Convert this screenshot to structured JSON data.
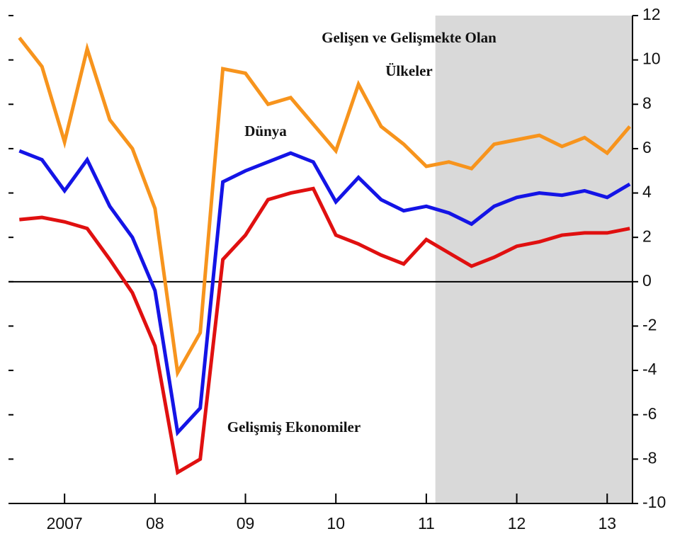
{
  "chart_data": {
    "type": "line",
    "x": [
      2007,
      2007.25,
      2007.5,
      2007.75,
      2008,
      2008.25,
      2008.5,
      2008.75,
      2009,
      2009.25,
      2009.5,
      2009.75,
      2010,
      2010.25,
      2010.5,
      2010.75,
      2011,
      2011.25,
      2011.5,
      2011.75,
      2012,
      2012.25,
      2012.5,
      2012.75,
      2013,
      2013.25,
      2013.5,
      2013.75
    ],
    "series": [
      {
        "name": "Gelişen ve Gelişmekte Olan Ülkeler",
        "color": "#f7941d",
        "values": [
          11.0,
          9.7,
          6.3,
          10.5,
          7.3,
          6.0,
          3.3,
          -4.1,
          -2.3,
          9.6,
          9.4,
          8.0,
          8.3,
          7.1,
          5.9,
          8.9,
          7.0,
          6.2,
          5.2,
          5.4,
          5.1,
          6.2,
          6.4,
          6.6,
          6.1,
          6.5,
          5.8,
          7.0
        ]
      },
      {
        "name": "Dünya",
        "color": "#1414e6",
        "values": [
          5.9,
          5.5,
          4.1,
          5.5,
          3.4,
          2.0,
          -0.4,
          -6.8,
          -5.7,
          4.5,
          5.0,
          5.4,
          5.8,
          5.4,
          3.6,
          4.7,
          3.7,
          3.2,
          3.4,
          3.1,
          2.6,
          3.4,
          3.8,
          4.0,
          3.9,
          4.1,
          3.8,
          4.4
        ]
      },
      {
        "name": "Gelişmiş Ekonomiler",
        "color": "#e01010",
        "values": [
          2.8,
          2.9,
          2.7,
          2.4,
          1.0,
          -0.5,
          -2.9,
          -8.6,
          -8.0,
          1.0,
          2.1,
          3.7,
          4.0,
          4.2,
          2.1,
          1.7,
          1.2,
          0.8,
          1.9,
          1.3,
          0.7,
          1.1,
          1.6,
          1.8,
          2.1,
          2.2,
          2.2,
          2.4
        ]
      }
    ],
    "xlim": [
      2006.88,
      2013.78
    ],
    "xticks": [
      {
        "value": 2007.5,
        "label": "2007"
      },
      {
        "value": 2008.5,
        "label": "08"
      },
      {
        "value": 2009.5,
        "label": "09"
      },
      {
        "value": 2010.5,
        "label": "10"
      },
      {
        "value": 2011.5,
        "label": "11"
      },
      {
        "value": 2012.5,
        "label": "12"
      },
      {
        "value": 2013.5,
        "label": "13"
      }
    ],
    "ylim": [
      -10,
      12
    ],
    "yticks": [
      -10,
      -8,
      -6,
      -4,
      -2,
      0,
      2,
      4,
      6,
      8,
      10,
      12
    ],
    "y_axis_side": "right",
    "zero_line": true,
    "shade": {
      "from": 2011.6,
      "color": "#d9d9d9"
    }
  }
}
